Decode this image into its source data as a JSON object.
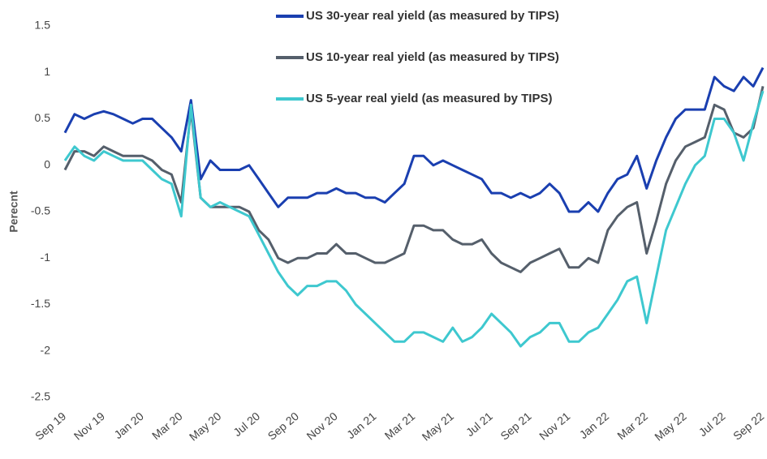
{
  "chart_data": {
    "type": "line",
    "y_label": "Perecnt",
    "categories": [
      "Sep 19",
      null,
      null,
      null,
      "Nov 19",
      null,
      null,
      null,
      "Jan 20",
      null,
      null,
      null,
      "Mar 20",
      null,
      null,
      null,
      "May 20",
      null,
      null,
      null,
      "Jul 20",
      null,
      null,
      null,
      "Sep 20",
      null,
      null,
      null,
      "Nov 20",
      null,
      null,
      null,
      "Jan 21",
      null,
      null,
      null,
      "Mar 21",
      null,
      null,
      null,
      "May 21",
      null,
      null,
      null,
      "Jul 21",
      null,
      null,
      null,
      "Sep 21",
      null,
      null,
      null,
      "Nov 21",
      null,
      null,
      null,
      "Jan 22",
      null,
      null,
      null,
      "Mar 22",
      null,
      null,
      null,
      "May 22",
      null,
      null,
      null,
      "Jul 22",
      null,
      null,
      null,
      "Sep 22"
    ],
    "series": [
      {
        "name": "US 30-year real yield (as measured by TIPS)",
        "color": "#1a3fb0",
        "values": [
          0.35,
          0.55,
          0.5,
          0.55,
          0.58,
          0.55,
          0.5,
          0.45,
          0.5,
          0.5,
          0.4,
          0.3,
          0.15,
          0.7,
          -0.15,
          0.05,
          -0.05,
          -0.05,
          -0.05,
          0.0,
          -0.15,
          -0.3,
          -0.45,
          -0.35,
          -0.35,
          -0.35,
          -0.3,
          -0.3,
          -0.25,
          -0.3,
          -0.3,
          -0.35,
          -0.35,
          -0.4,
          -0.3,
          -0.2,
          0.1,
          0.1,
          0.0,
          0.05,
          0.0,
          -0.05,
          -0.1,
          -0.15,
          -0.3,
          -0.3,
          -0.35,
          -0.3,
          -0.35,
          -0.3,
          -0.2,
          -0.3,
          -0.5,
          -0.5,
          -0.4,
          -0.5,
          -0.3,
          -0.15,
          -0.1,
          0.1,
          -0.25,
          0.05,
          0.3,
          0.5,
          0.6,
          0.6,
          0.6,
          0.95,
          0.85,
          0.8,
          0.95,
          0.85,
          1.05
        ]
      },
      {
        "name": "US 10-year real yield (as measured by TIPS)",
        "color": "#555f6b",
        "values": [
          -0.05,
          0.15,
          0.15,
          0.1,
          0.2,
          0.15,
          0.1,
          0.1,
          0.1,
          0.05,
          -0.05,
          -0.1,
          -0.4,
          0.6,
          -0.35,
          -0.45,
          -0.45,
          -0.45,
          -0.45,
          -0.5,
          -0.7,
          -0.8,
          -1.0,
          -1.05,
          -1.0,
          -1.0,
          -0.95,
          -0.95,
          -0.85,
          -0.95,
          -0.95,
          -1.0,
          -1.05,
          -1.05,
          -1.0,
          -0.95,
          -0.65,
          -0.65,
          -0.7,
          -0.7,
          -0.8,
          -0.85,
          -0.85,
          -0.8,
          -0.95,
          -1.05,
          -1.1,
          -1.15,
          -1.05,
          -1.0,
          -0.95,
          -0.9,
          -1.1,
          -1.1,
          -1.0,
          -1.05,
          -0.7,
          -0.55,
          -0.45,
          -0.4,
          -0.95,
          -0.6,
          -0.2,
          0.05,
          0.2,
          0.25,
          0.3,
          0.65,
          0.6,
          0.35,
          0.3,
          0.4,
          0.85
        ]
      },
      {
        "name": "US 5-year real yield (as measured by TIPS)",
        "color": "#3ec8cf",
        "values": [
          0.05,
          0.2,
          0.1,
          0.05,
          0.15,
          0.1,
          0.05,
          0.05,
          0.05,
          -0.05,
          -0.15,
          -0.2,
          -0.55,
          0.65,
          -0.35,
          -0.45,
          -0.4,
          -0.45,
          -0.5,
          -0.55,
          -0.75,
          -0.95,
          -1.15,
          -1.3,
          -1.4,
          -1.3,
          -1.3,
          -1.25,
          -1.25,
          -1.35,
          -1.5,
          -1.6,
          -1.7,
          -1.8,
          -1.9,
          -1.9,
          -1.8,
          -1.8,
          -1.85,
          -1.9,
          -1.75,
          -1.9,
          -1.85,
          -1.75,
          -1.6,
          -1.7,
          -1.8,
          -1.95,
          -1.85,
          -1.8,
          -1.7,
          -1.7,
          -1.9,
          -1.9,
          -1.8,
          -1.75,
          -1.6,
          -1.45,
          -1.25,
          -1.2,
          -1.7,
          -1.2,
          -0.7,
          -0.45,
          -0.2,
          0.0,
          0.1,
          0.5,
          0.5,
          0.35,
          0.05,
          0.45,
          0.8
        ]
      }
    ],
    "ylim": [
      -2.5,
      1.5
    ],
    "yticks": [
      -2.5,
      -2,
      -1.5,
      -1,
      -0.5,
      0,
      0.5,
      1,
      1.5
    ],
    "grid": false,
    "legend": "top"
  }
}
